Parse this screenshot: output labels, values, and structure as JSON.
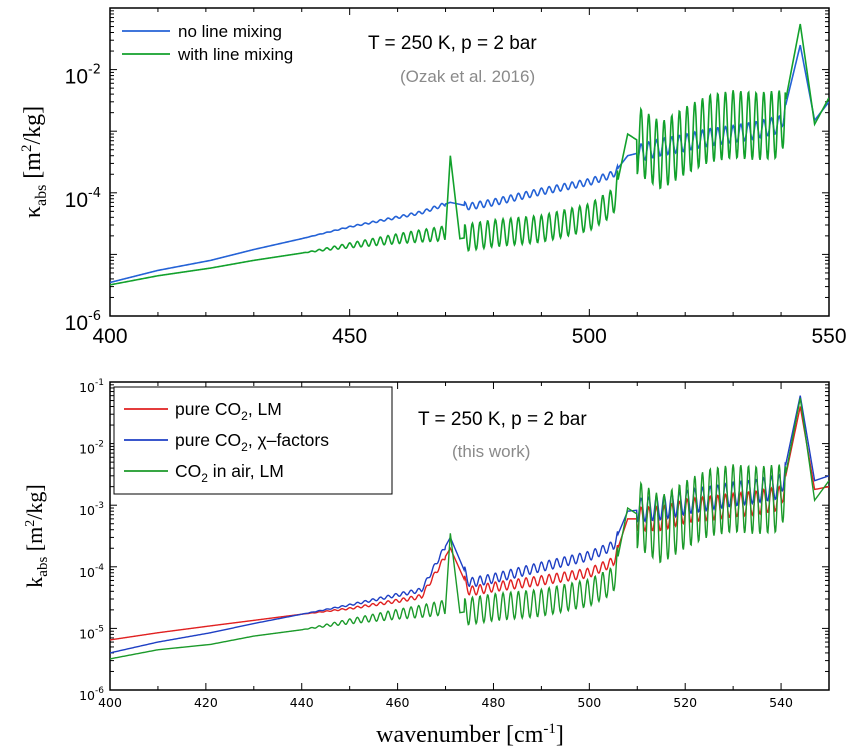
{
  "colors": {
    "no_lm": "#2462d6",
    "with_lm": "#12a12c",
    "pure_lm": "#e02020",
    "chi": "#1e3fc4",
    "air": "#1b9a2a",
    "note": "#8a8a8a"
  },
  "chart_data": [
    {
      "type": "line",
      "yscale": "log",
      "xlim": [
        400,
        550
      ],
      "ylim": [
        1e-06,
        0.1
      ],
      "xticks": [
        "400",
        "450",
        "500",
        "550"
      ],
      "yticks": [
        {
          "base": "10",
          "exp": "-6"
        },
        {
          "base": "10",
          "exp": "-4"
        },
        {
          "base": "10",
          "exp": "-2"
        }
      ],
      "ylabel": {
        "main": "κ",
        "sub": "abs",
        "unit_pre": " [m",
        "unit_sup": "2",
        "unit_post": "/kg]"
      },
      "annotation": "T = 250 K, p = 2 bar",
      "source": "(Ozak et al. 2016)",
      "legend_position": "top-left",
      "series": [
        {
          "name": "no line mixing",
          "x": [
            400,
            410,
            421,
            430,
            440,
            450,
            460,
            465,
            471,
            475,
            480,
            490,
            500,
            505,
            508,
            515,
            520,
            525,
            530,
            535,
            540,
            544,
            547,
            550
          ],
          "y": [
            3.5e-06,
            5.5e-06,
            8e-06,
            1.2e-05,
            1.8e-05,
            2.8e-05,
            4e-05,
            4.8e-05,
            7e-05,
            6e-05,
            7e-05,
            0.000105,
            0.00015,
            0.0002,
            0.0004,
            0.00055,
            0.00065,
            0.0008,
            0.0009,
            0.00105,
            0.0013,
            0.025,
            0.0015,
            0.003
          ]
        },
        {
          "name": "with line mixing",
          "x": [
            400,
            410,
            421,
            430,
            440,
            450,
            460,
            465,
            470,
            471,
            473,
            480,
            490,
            500,
            505,
            508,
            515,
            520,
            525,
            530,
            535,
            540,
            544,
            547,
            550
          ],
          "y": [
            3.2e-06,
            4.5e-06,
            6e-06,
            8e-06,
            1.05e-05,
            1.4e-05,
            1.8e-05,
            2e-05,
            2.2e-05,
            0.0004,
            1.8e-05,
            2.2e-05,
            2.6e-05,
            4e-05,
            7e-05,
            0.0009,
            0.0004,
            0.0007,
            0.0011,
            0.0013,
            0.0012,
            0.0013,
            0.055,
            0.0013,
            0.0035
          ]
        }
      ]
    },
    {
      "type": "line",
      "yscale": "log",
      "xlim": [
        400,
        550
      ],
      "ylim": [
        1e-06,
        0.1
      ],
      "xticks": [
        "400",
        "420",
        "440",
        "460",
        "480",
        "500",
        "520",
        "540"
      ],
      "yticks": [
        {
          "base": "10",
          "exp": "-6"
        },
        {
          "base": "10",
          "exp": "-5"
        },
        {
          "base": "10",
          "exp": "-4"
        },
        {
          "base": "10",
          "exp": "-3"
        },
        {
          "base": "10",
          "exp": "-2"
        },
        {
          "base": "10",
          "exp": "-1"
        }
      ],
      "xlabel": {
        "main": "wavenumber [cm",
        "sup": "-1",
        "post": "]"
      },
      "ylabel": {
        "main": "k",
        "sub": "abs",
        "unit_pre": " [m",
        "unit_sup": "2",
        "unit_post": "/kg]"
      },
      "annotation": "T = 250 K, p = 2 bar",
      "source": "(this work)",
      "legend_position": "top-left",
      "series": [
        {
          "name_parts": [
            "pure CO",
            "2",
            ", LM"
          ],
          "x": [
            400,
            410,
            421,
            430,
            440,
            450,
            460,
            465,
            471,
            475,
            480,
            490,
            500,
            505,
            508,
            515,
            520,
            525,
            530,
            535,
            540,
            544,
            547,
            550
          ],
          "y": [
            6.5e-06,
            8.5e-06,
            1.1e-05,
            1.35e-05,
            1.7e-05,
            2.1e-05,
            2.8e-05,
            3.3e-05,
            0.0002,
            4e-05,
            4.7e-05,
            6e-05,
            8e-05,
            0.00012,
            0.0006,
            0.0006,
            0.0008,
            0.0009,
            0.001,
            0.0011,
            0.0013,
            0.04,
            0.0018,
            0.002
          ]
        },
        {
          "name_parts": [
            "pure CO",
            "2",
            ", χ–factors"
          ],
          "x": [
            400,
            410,
            421,
            430,
            440,
            450,
            460,
            465,
            471,
            475,
            480,
            490,
            500,
            505,
            508,
            515,
            520,
            525,
            530,
            535,
            540,
            544,
            547,
            550
          ],
          "y": [
            4e-06,
            6e-06,
            8.5e-06,
            1.2e-05,
            1.7e-05,
            2.4e-05,
            3.5e-05,
            4.2e-05,
            0.0003,
            5.5e-05,
            6.5e-05,
            0.0001,
            0.00015,
            0.00022,
            0.0008,
            0.0009,
            0.0011,
            0.0013,
            0.0015,
            0.0017,
            0.002,
            0.06,
            0.0025,
            0.003
          ]
        },
        {
          "name_parts": [
            "CO",
            "2",
            " in air, LM"
          ],
          "x": [
            400,
            410,
            421,
            430,
            440,
            450,
            460,
            465,
            470,
            471,
            473,
            480,
            490,
            500,
            505,
            508,
            515,
            520,
            525,
            530,
            535,
            540,
            544,
            547,
            550
          ],
          "y": [
            3.2e-06,
            4.5e-06,
            5.5e-06,
            7.5e-06,
            9.5e-06,
            1.3e-05,
            1.7e-05,
            1.9e-05,
            2.2e-05,
            0.00035,
            1.8e-05,
            2.2e-05,
            2.6e-05,
            3.8e-05,
            6e-05,
            0.0009,
            0.0004,
            0.0007,
            0.0011,
            0.0013,
            0.0012,
            0.0013,
            0.055,
            0.0012,
            0.0025
          ]
        }
      ]
    }
  ]
}
